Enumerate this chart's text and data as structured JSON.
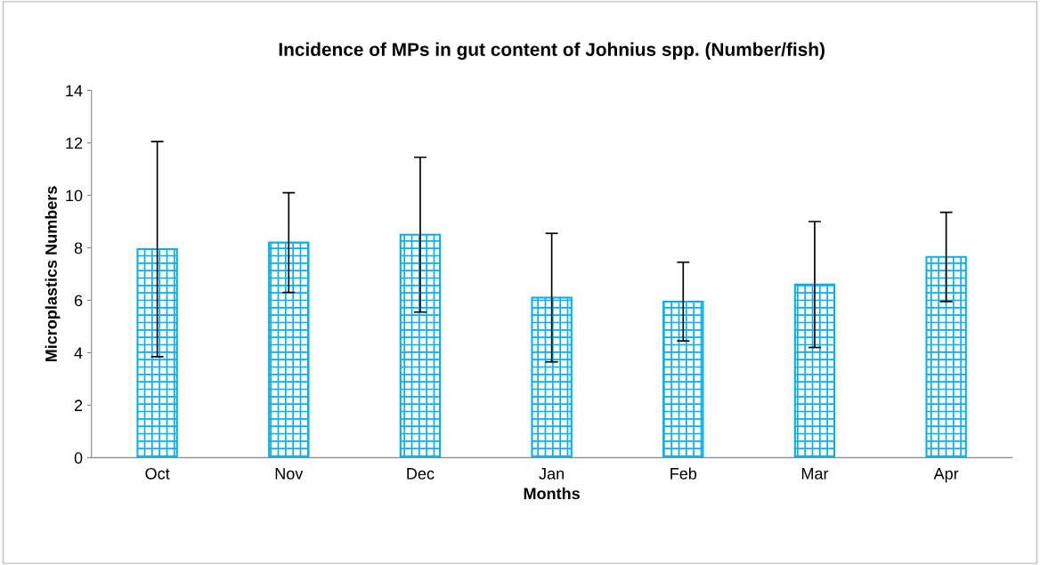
{
  "chart_data": {
    "type": "bar",
    "title": "Incidence of MPs in gut content of Johnius spp. (Number/fish)",
    "xlabel": "Months",
    "ylabel": "Microplastics Numbers",
    "categories": [
      "Oct",
      "Nov",
      "Dec",
      "Jan",
      "Feb",
      "Mar",
      "Apr"
    ],
    "values": [
      7.95,
      8.2,
      8.5,
      6.1,
      5.95,
      6.6,
      7.65
    ],
    "errors": [
      4.1,
      1.9,
      2.95,
      2.45,
      1.5,
      2.4,
      1.7
    ],
    "color": "#00b0f0",
    "ylim": [
      0,
      14
    ],
    "yticks": [
      0,
      2,
      4,
      6,
      8,
      10,
      12,
      14
    ],
    "grid": false
  }
}
